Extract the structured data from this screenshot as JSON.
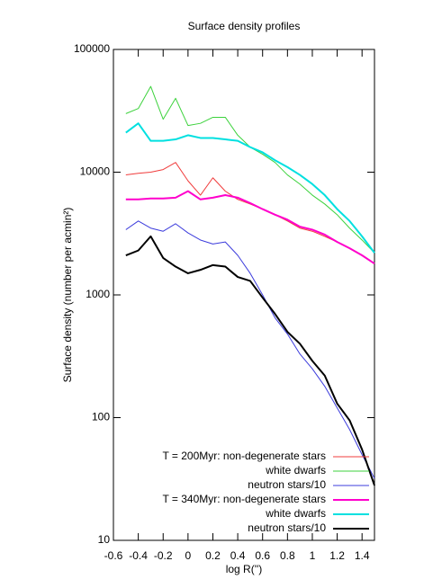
{
  "chart_data": {
    "type": "line",
    "title": "Surface density profiles",
    "xlabel": "log R('')",
    "ylabel": "Surface density (number per acmin²)",
    "x": [
      -0.5,
      -0.4,
      -0.3,
      -0.2,
      -0.1,
      0,
      0.1,
      0.2,
      0.3,
      0.4,
      0.5,
      0.6,
      0.7,
      0.8,
      0.9,
      1.0,
      1.1,
      1.2,
      1.3,
      1.4,
      1.5
    ],
    "series": [
      {
        "name": "T = 200Myr: non-degenerate stars",
        "color": "#f03c3c",
        "width": 1,
        "values": [
          9500,
          9800,
          10000,
          10500,
          12000,
          8500,
          6500,
          9000,
          7000,
          6000,
          5500,
          5000,
          4500,
          4000,
          3500,
          3300,
          3000,
          2700,
          2400,
          2100,
          1800
        ]
      },
      {
        "name": "white dwarfs",
        "color": "#3cd23c",
        "width": 1,
        "values": [
          30000,
          33000,
          50000,
          27000,
          40000,
          24000,
          25000,
          28000,
          28000,
          20000,
          16000,
          14000,
          12000,
          9500,
          8000,
          6500,
          5500,
          4500,
          3500,
          2800,
          2200
        ]
      },
      {
        "name": "neutron stars/10",
        "color": "#3c3cdc",
        "width": 1,
        "values": [
          3400,
          4000,
          3500,
          3300,
          3800,
          3200,
          2800,
          2600,
          2700,
          2100,
          1500,
          1000,
          650,
          480,
          330,
          250,
          180,
          120,
          80,
          50,
          32
        ]
      },
      {
        "name": "T = 340Myr: non-degenerate stars",
        "color": "#ff00cc",
        "width": 2,
        "values": [
          6000,
          6000,
          6100,
          6100,
          6200,
          7000,
          6000,
          6200,
          6500,
          6200,
          5600,
          5000,
          4500,
          4100,
          3600,
          3400,
          3100,
          2700,
          2400,
          2100,
          1800
        ]
      },
      {
        "name": "white dwarfs",
        "color": "#00e0e0",
        "width": 2,
        "values": [
          21000,
          25000,
          18000,
          18000,
          18500,
          20000,
          19000,
          19000,
          18500,
          18000,
          16000,
          14500,
          12500,
          11000,
          9500,
          8000,
          6500,
          5000,
          4000,
          3000,
          2200
        ]
      },
      {
        "name": "neutron stars/10",
        "color": "#000000",
        "width": 2,
        "values": [
          2100,
          2300,
          3000,
          2000,
          1700,
          1500,
          1600,
          1750,
          1700,
          1400,
          1300,
          950,
          700,
          500,
          400,
          290,
          220,
          130,
          95,
          55,
          28
        ]
      }
    ],
    "xlim": [
      -0.6,
      1.5
    ],
    "xticks": [
      -0.6,
      -0.4,
      -0.2,
      0,
      0.2,
      0.4,
      0.6,
      0.8,
      1,
      1.2,
      1.4
    ],
    "ylim": [
      10,
      100000
    ],
    "yticks": [
      10,
      100,
      1000,
      10000,
      100000
    ],
    "ylog": true,
    "legend": "lower right"
  }
}
